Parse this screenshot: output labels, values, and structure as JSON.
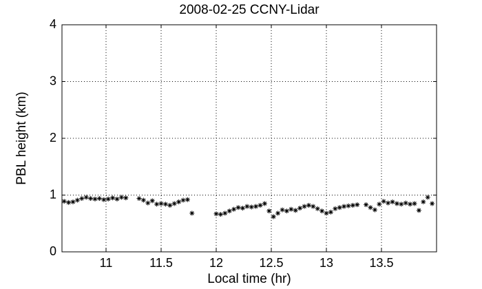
{
  "chart_data": {
    "type": "scatter",
    "title": "2008-02-25 CCNY-Lidar",
    "x_label": "Local time (hr)",
    "y_label": "PBL height (km)",
    "xlim": [
      10.6,
      14.0
    ],
    "ylim": [
      0,
      4
    ],
    "xticks": [
      11,
      11.5,
      12,
      12.5,
      13,
      13.5
    ],
    "yticks": [
      0,
      1,
      2,
      3,
      4
    ],
    "grid": true,
    "marker": "*",
    "color": "#000000",
    "x": [
      10.62,
      10.66,
      10.7,
      10.74,
      10.78,
      10.82,
      10.86,
      10.9,
      10.94,
      10.98,
      11.02,
      11.06,
      11.1,
      11.14,
      11.18,
      11.3,
      11.34,
      11.38,
      11.42,
      11.46,
      11.5,
      11.54,
      11.58,
      11.62,
      11.66,
      11.7,
      11.74,
      11.78,
      12.0,
      12.04,
      12.08,
      12.12,
      12.16,
      12.2,
      12.24,
      12.28,
      12.32,
      12.36,
      12.4,
      12.44,
      12.48,
      12.52,
      12.56,
      12.6,
      12.64,
      12.68,
      12.72,
      12.76,
      12.8,
      12.84,
      12.88,
      12.92,
      12.96,
      13.0,
      13.04,
      13.08,
      13.12,
      13.16,
      13.2,
      13.24,
      13.28,
      13.36,
      13.4,
      13.44,
      13.48,
      13.52,
      13.56,
      13.6,
      13.64,
      13.68,
      13.72,
      13.76,
      13.8,
      13.84,
      13.88,
      13.92,
      13.96
    ],
    "values": [
      0.89,
      0.87,
      0.88,
      0.91,
      0.94,
      0.96,
      0.94,
      0.93,
      0.94,
      0.92,
      0.93,
      0.95,
      0.93,
      0.96,
      0.95,
      0.94,
      0.91,
      0.86,
      0.9,
      0.84,
      0.85,
      0.84,
      0.82,
      0.85,
      0.88,
      0.91,
      0.92,
      0.68,
      0.67,
      0.66,
      0.68,
      0.72,
      0.75,
      0.78,
      0.77,
      0.8,
      0.79,
      0.8,
      0.82,
      0.85,
      0.72,
      0.62,
      0.68,
      0.74,
      0.72,
      0.75,
      0.73,
      0.77,
      0.8,
      0.82,
      0.8,
      0.76,
      0.72,
      0.68,
      0.7,
      0.76,
      0.78,
      0.8,
      0.81,
      0.82,
      0.83,
      0.83,
      0.78,
      0.74,
      0.84,
      0.89,
      0.86,
      0.88,
      0.85,
      0.84,
      0.86,
      0.84,
      0.85,
      0.73,
      0.88,
      0.96,
      0.85
    ]
  }
}
